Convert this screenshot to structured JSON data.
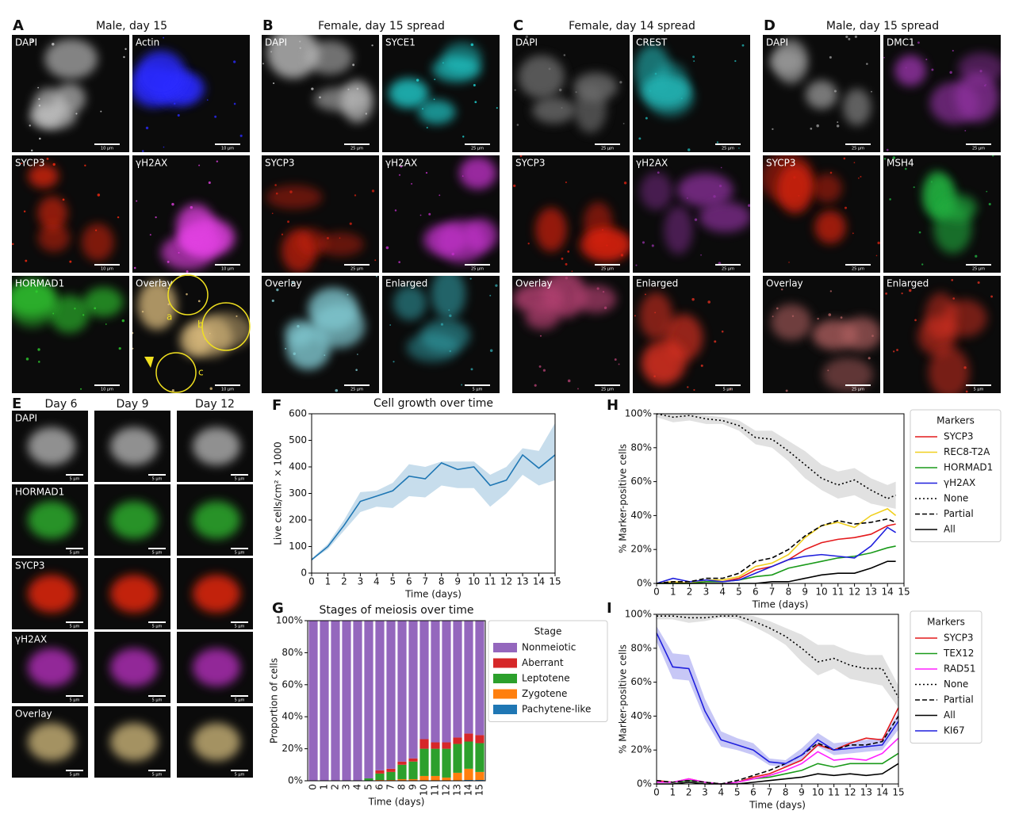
{
  "panels": [
    {
      "letter": "A",
      "title": "Male, day 15",
      "images": [
        {
          "label": "DAPI",
          "scale": "10 μm",
          "tint": "#cfcfcf"
        },
        {
          "label": "Actin",
          "scale": "10 μm",
          "tint": "#2a2aff"
        },
        {
          "label": "SYCP3",
          "scale": "10 μm",
          "tint": "#ff2a10"
        },
        {
          "label": "γH2AX",
          "scale": "10 μm",
          "tint": "#e040e0"
        },
        {
          "label": "HORMAD1",
          "scale": "10 μm",
          "tint": "#30d030"
        },
        {
          "label": "Overlay",
          "scale": "10 μm",
          "tint": "#e0c080",
          "marks": [
            "a",
            "b",
            "c"
          ]
        }
      ]
    },
    {
      "letter": "B",
      "title": "Female, day 15 spread",
      "images": [
        {
          "label": "DAPI",
          "scale": "25 μm",
          "tint": "#bfbfbf"
        },
        {
          "label": "SYCE1",
          "scale": "25 μm",
          "tint": "#20d8d8"
        },
        {
          "label": "SYCP3",
          "scale": "25 μm",
          "tint": "#d02010"
        },
        {
          "label": "γH2AX",
          "scale": "25 μm",
          "tint": "#c030c8"
        },
        {
          "label": "Overlay",
          "scale": "25 μm",
          "tint": "#80c8d0"
        },
        {
          "label": "Enlarged",
          "scale": "5 μm",
          "tint": "#30a0a8"
        }
      ]
    },
    {
      "letter": "C",
      "title": "Female, day 14 spread",
      "images": [
        {
          "label": "DAPI",
          "scale": "25 μm",
          "tint": "#707070"
        },
        {
          "label": "CREST",
          "scale": "25 μm",
          "tint": "#20b0b0"
        },
        {
          "label": "SYCP3",
          "scale": "25 μm",
          "tint": "#e02010"
        },
        {
          "label": "γH2AX",
          "scale": "25 μm",
          "tint": "#9030a0"
        },
        {
          "label": "Overlay",
          "scale": "25 μm",
          "tint": "#b04070"
        },
        {
          "label": "Enlarged",
          "scale": "5 μm",
          "tint": "#e03020"
        }
      ]
    },
    {
      "letter": "D",
      "title": "Male, day 15 spread",
      "images": [
        {
          "label": "DAPI",
          "scale": "25 μm",
          "tint": "#9a9a9a"
        },
        {
          "label": "DMC1",
          "scale": "25 μm",
          "tint": "#9030a0"
        },
        {
          "label": "SYCP3",
          "scale": "25 μm",
          "tint": "#d02010"
        },
        {
          "label": "MSH4",
          "scale": "25 μm",
          "tint": "#20b040"
        },
        {
          "label": "Overlay",
          "scale": "25 μm",
          "tint": "#b06060"
        },
        {
          "label": "Enlarged",
          "scale": "5 μm",
          "tint": "#e03020"
        }
      ]
    }
  ],
  "panel_e": {
    "letter": "E",
    "columns": [
      "Day 6",
      "Day 9",
      "Day 12"
    ],
    "rows": [
      "DAPI",
      "HORMAD1",
      "SYCP3",
      "γH2AX",
      "Overlay"
    ],
    "tints": [
      "#bdbdbd",
      "#30c030",
      "#ff2a10",
      "#c030c8",
      "#d8c080"
    ],
    "scale": "5 μm"
  },
  "chart_data": [
    {
      "type": "line",
      "panel": "F",
      "title": "Cell growth over time",
      "x_label": "Time (days)",
      "y_label": "Live cells/cm² × 1000",
      "x": [
        0,
        1,
        2,
        3,
        4,
        5,
        6,
        7,
        8,
        9,
        10,
        11,
        12,
        13,
        14,
        15
      ],
      "series": [
        {
          "color": "#1f77b4",
          "dash": "solid",
          "values": [
            50,
            100,
            180,
            270,
            290,
            310,
            365,
            355,
            415,
            390,
            400,
            330,
            350,
            445,
            395,
            445
          ],
          "lower": [
            50,
            90,
            160,
            230,
            250,
            245,
            290,
            285,
            330,
            320,
            320,
            250,
            300,
            370,
            330,
            350
          ],
          "upper": [
            55,
            110,
            200,
            305,
            310,
            340,
            410,
            400,
            420,
            420,
            420,
            370,
            400,
            470,
            460,
            565
          ]
        }
      ],
      "xlim": [
        0,
        15
      ],
      "xticks": [
        0,
        1,
        2,
        3,
        4,
        5,
        6,
        7,
        8,
        9,
        10,
        11,
        12,
        13,
        14,
        15
      ],
      "ylim": [
        0,
        600
      ],
      "yticks": [
        0,
        100,
        200,
        300,
        400,
        500,
        600
      ]
    },
    {
      "type": "bar",
      "panel": "G",
      "title": "Stages of meiosis over time",
      "x_label": "Time (days)",
      "y_label": "Proportion of cells",
      "legend_title": "Stage",
      "categories": [
        "0",
        "1",
        "2",
        "3",
        "4",
        "5",
        "6",
        "7",
        "8",
        "9",
        "10",
        "11",
        "12",
        "13",
        "14",
        "15"
      ],
      "series": [
        {
          "name": "Nonmeiotic",
          "color": "#9467bd",
          "values": [
            100,
            100,
            100,
            100,
            100,
            98.5,
            93.5,
            92.5,
            88,
            86,
            74,
            76,
            76,
            73,
            70.5,
            71.5
          ]
        },
        {
          "name": "Aberrant",
          "color": "#d62728",
          "values": [
            0,
            0,
            0,
            0,
            0,
            0,
            2,
            2,
            2,
            2,
            6,
            4,
            4,
            4,
            5,
            5
          ]
        },
        {
          "name": "Leptotene",
          "color": "#2ca02c",
          "values": [
            0,
            0,
            0,
            0,
            0,
            1.5,
            4,
            5,
            9,
            11,
            17,
            17,
            18,
            18,
            17,
            18
          ]
        },
        {
          "name": "Zygotene",
          "color": "#ff7f0e",
          "values": [
            0,
            0,
            0,
            0,
            0,
            0,
            0.5,
            0.5,
            1,
            1,
            3,
            3,
            2,
            5,
            7,
            5
          ]
        },
        {
          "name": "Pachytene-like",
          "color": "#1f77b4",
          "values": [
            0,
            0,
            0,
            0,
            0,
            0,
            0,
            0,
            0,
            0,
            0,
            0,
            0,
            0,
            0.5,
            0.5
          ]
        }
      ],
      "ylim": [
        0,
        100
      ],
      "yticks": [
        {
          "value": 0,
          "label": "0%"
        },
        {
          "value": 20,
          "label": "20%"
        },
        {
          "value": 40,
          "label": "40%"
        },
        {
          "value": 60,
          "label": "60%"
        },
        {
          "value": 80,
          "label": "80%"
        },
        {
          "value": 100,
          "label": "100%"
        }
      ]
    },
    {
      "type": "line",
      "panel": "H",
      "x_label": "Time (days)",
      "y_label": "% Marker-positive cells",
      "legend_title": "Markers",
      "x": [
        0,
        1,
        2,
        3,
        4,
        5,
        6,
        7,
        8,
        9,
        10,
        11,
        12,
        13,
        14,
        14.5
      ],
      "series": [
        {
          "name": "SYCP3",
          "color": "#e41a1c",
          "dash": "solid",
          "values": [
            0,
            1,
            0,
            1,
            1,
            3,
            8,
            10,
            14,
            20,
            24,
            26,
            27,
            29,
            34,
            35
          ]
        },
        {
          "name": "REC8-T2A",
          "color": "#f0d020",
          "dash": "solid",
          "values": [
            0,
            1,
            0,
            2,
            2,
            4,
            10,
            12,
            17,
            27,
            34,
            36,
            33,
            40,
            44,
            40
          ]
        },
        {
          "name": "HORMAD1",
          "color": "#1a9a1a",
          "dash": "solid",
          "values": [
            0,
            0,
            0,
            1,
            1,
            2,
            4,
            5,
            9,
            11,
            13,
            15,
            16,
            18,
            21,
            22
          ]
        },
        {
          "name": "γH2AX",
          "color": "#1f1fdd",
          "dash": "solid",
          "values": [
            0,
            3,
            1,
            2,
            1,
            2,
            6,
            10,
            14,
            16,
            17,
            16,
            15,
            22,
            33,
            30
          ]
        },
        {
          "name": "None",
          "color": "#000000",
          "dash": "dotted",
          "values": [
            100,
            98,
            99,
            97,
            96,
            93,
            86,
            85,
            78,
            70,
            62,
            58,
            61,
            55,
            50,
            52
          ],
          "lower": [
            98,
            95,
            96,
            94,
            94,
            90,
            82,
            80,
            72,
            62,
            55,
            50,
            52,
            47,
            45,
            44
          ],
          "upper": [
            100,
            100,
            100,
            99,
            98,
            96,
            90,
            90,
            84,
            78,
            70,
            66,
            68,
            62,
            58,
            60
          ]
        },
        {
          "name": "Partial",
          "color": "#000000",
          "dash": "dashed",
          "values": [
            0,
            1,
            1,
            3,
            3,
            6,
            13,
            15,
            20,
            28,
            34,
            37,
            35,
            36,
            38,
            36
          ]
        },
        {
          "name": "All",
          "color": "#000000",
          "dash": "solid",
          "values": [
            0,
            0,
            0,
            0,
            0,
            0,
            0,
            1,
            1,
            3,
            5,
            6,
            6,
            9,
            13,
            13
          ]
        }
      ],
      "xlim": [
        0,
        15
      ],
      "xticks": [
        0,
        1,
        2,
        3,
        4,
        5,
        6,
        7,
        8,
        9,
        10,
        11,
        12,
        13,
        14,
        15
      ],
      "ylim": [
        0,
        100
      ],
      "yticks": [
        {
          "value": 0,
          "label": "0%"
        },
        {
          "value": 20,
          "label": "20%"
        },
        {
          "value": 40,
          "label": "40%"
        },
        {
          "value": 60,
          "label": "60%"
        },
        {
          "value": 80,
          "label": "80%"
        },
        {
          "value": 100,
          "label": "100%"
        }
      ]
    },
    {
      "type": "line",
      "panel": "I",
      "x_label": "Time (days)",
      "y_label": "% Marker-positive cells",
      "legend_title": "Markers",
      "x": [
        0,
        1,
        2,
        3,
        4,
        5,
        6,
        7,
        8,
        9,
        10,
        11,
        12,
        13,
        14,
        15
      ],
      "series": [
        {
          "name": "SYCP3",
          "color": "#e41a1c",
          "dash": "solid",
          "values": [
            2,
            1,
            3,
            1,
            0,
            1,
            4,
            6,
            10,
            14,
            23,
            20,
            24,
            27,
            26,
            45
          ]
        },
        {
          "name": "TEX12",
          "color": "#1a9a1a",
          "dash": "solid",
          "values": [
            1,
            1,
            2,
            1,
            0,
            1,
            3,
            4,
            6,
            8,
            12,
            10,
            12,
            12,
            12,
            18
          ]
        },
        {
          "name": "RAD51",
          "color": "#ff20ff",
          "dash": "solid",
          "values": [
            1,
            1,
            3,
            1,
            0,
            1,
            3,
            5,
            8,
            12,
            19,
            14,
            15,
            14,
            18,
            27
          ]
        },
        {
          "name": "None",
          "color": "#000000",
          "dash": "dotted",
          "values": [
            99,
            99,
            98,
            98,
            99,
            99,
            96,
            92,
            87,
            80,
            72,
            74,
            70,
            68,
            68,
            51
          ],
          "lower": [
            97,
            97,
            95,
            96,
            98,
            97,
            93,
            88,
            82,
            72,
            64,
            68,
            62,
            60,
            58,
            45
          ],
          "upper": [
            100,
            100,
            100,
            100,
            100,
            100,
            99,
            96,
            92,
            88,
            82,
            82,
            78,
            76,
            76,
            58
          ]
        },
        {
          "name": "Partial",
          "color": "#000000",
          "dash": "dashed",
          "values": [
            2,
            1,
            2,
            1,
            0,
            2,
            5,
            8,
            12,
            17,
            24,
            20,
            23,
            23,
            25,
            40
          ]
        },
        {
          "name": "All",
          "color": "#000000",
          "dash": "solid",
          "values": [
            0,
            0,
            1,
            0,
            0,
            0,
            1,
            2,
            3,
            4,
            6,
            5,
            6,
            5,
            6,
            12
          ]
        },
        {
          "name": "KI67",
          "color": "#1f1fdd",
          "dash": "solid",
          "values": [
            89,
            69,
            68,
            43,
            26,
            23,
            20,
            13,
            12,
            17,
            26,
            20,
            21,
            22,
            23,
            37
          ],
          "lower": [
            84,
            62,
            61,
            38,
            22,
            20,
            17,
            11,
            10,
            14,
            22,
            17,
            18,
            19,
            20,
            32
          ],
          "upper": [
            93,
            77,
            76,
            50,
            31,
            27,
            24,
            15,
            14,
            21,
            30,
            24,
            25,
            26,
            27,
            42
          ]
        }
      ],
      "xlim": [
        0,
        15
      ],
      "xticks": [
        0,
        1,
        2,
        3,
        4,
        5,
        6,
        7,
        8,
        9,
        10,
        11,
        12,
        13,
        14,
        15
      ],
      "ylim": [
        0,
        100
      ],
      "yticks": [
        {
          "value": 0,
          "label": "0%"
        },
        {
          "value": 20,
          "label": "20%"
        },
        {
          "value": 40,
          "label": "40%"
        },
        {
          "value": 60,
          "label": "60%"
        },
        {
          "value": 80,
          "label": "80%"
        },
        {
          "value": 100,
          "label": "100%"
        }
      ]
    }
  ]
}
